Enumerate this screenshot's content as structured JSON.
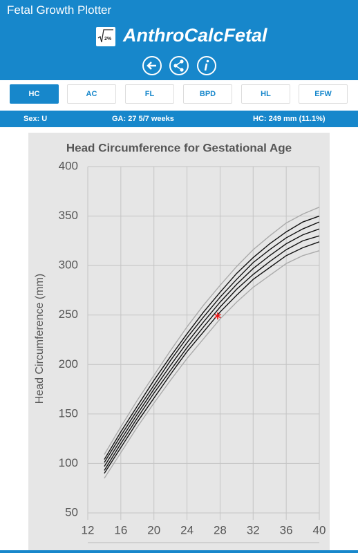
{
  "header": {
    "title": "Fetal Growth Plotter",
    "app_name": "AnthroCalcFetal",
    "logo_text": "2%"
  },
  "tabs": [
    "HC",
    "AC",
    "FL",
    "BPD",
    "HL",
    "EFW"
  ],
  "info": {
    "sex": "Sex: U",
    "ga": "GA: 27 5/7  weeks",
    "hc": "HC: 249 mm (11.1%)"
  },
  "chart_data": {
    "type": "line",
    "title": "Head Circumference for Gestational Age",
    "y_label": "Head Circumference (mm)",
    "x": [
      14,
      16,
      18,
      20,
      22,
      24,
      26,
      28,
      30,
      32,
      34,
      36,
      38,
      40
    ],
    "series": [
      {
        "color": "#aaaaaa",
        "values": [
          85,
          111,
          137,
          161,
          184,
          206,
          226,
          246,
          263,
          278,
          290,
          302,
          310,
          315
        ]
      },
      {
        "color": "#111111",
        "values": [
          90,
          116,
          142,
          166,
          190,
          213,
          233,
          253,
          270,
          286,
          298,
          310,
          318,
          324
        ]
      },
      {
        "color": "#111111",
        "values": [
          93,
          120,
          146,
          171,
          194,
          217,
          238,
          258,
          276,
          291,
          304,
          316,
          325,
          330
        ]
      },
      {
        "color": "#111111",
        "values": [
          97,
          124,
          150,
          175,
          199,
          222,
          243,
          263,
          281,
          297,
          310,
          322,
          331,
          337
        ]
      },
      {
        "color": "#111111",
        "values": [
          101,
          128,
          154,
          179,
          204,
          227,
          248,
          268,
          286,
          303,
          316,
          328,
          337,
          344
        ]
      },
      {
        "color": "#111111",
        "values": [
          104,
          132,
          158,
          184,
          208,
          231,
          253,
          273,
          292,
          308,
          322,
          334,
          344,
          350
        ]
      },
      {
        "color": "#aaaaaa",
        "values": [
          109,
          137,
          164,
          189,
          214,
          238,
          260,
          280,
          299,
          316,
          330,
          343,
          352,
          359
        ]
      }
    ],
    "point": {
      "x": 27.71,
      "y": 249,
      "color": "#ee1111"
    },
    "xlim": [
      12,
      40
    ],
    "xticks": [
      12,
      16,
      20,
      24,
      28,
      32,
      36,
      40
    ],
    "ylim": [
      50,
      400
    ],
    "yticks": [
      50,
      100,
      150,
      200,
      250,
      300,
      350,
      400
    ],
    "grid": true
  }
}
